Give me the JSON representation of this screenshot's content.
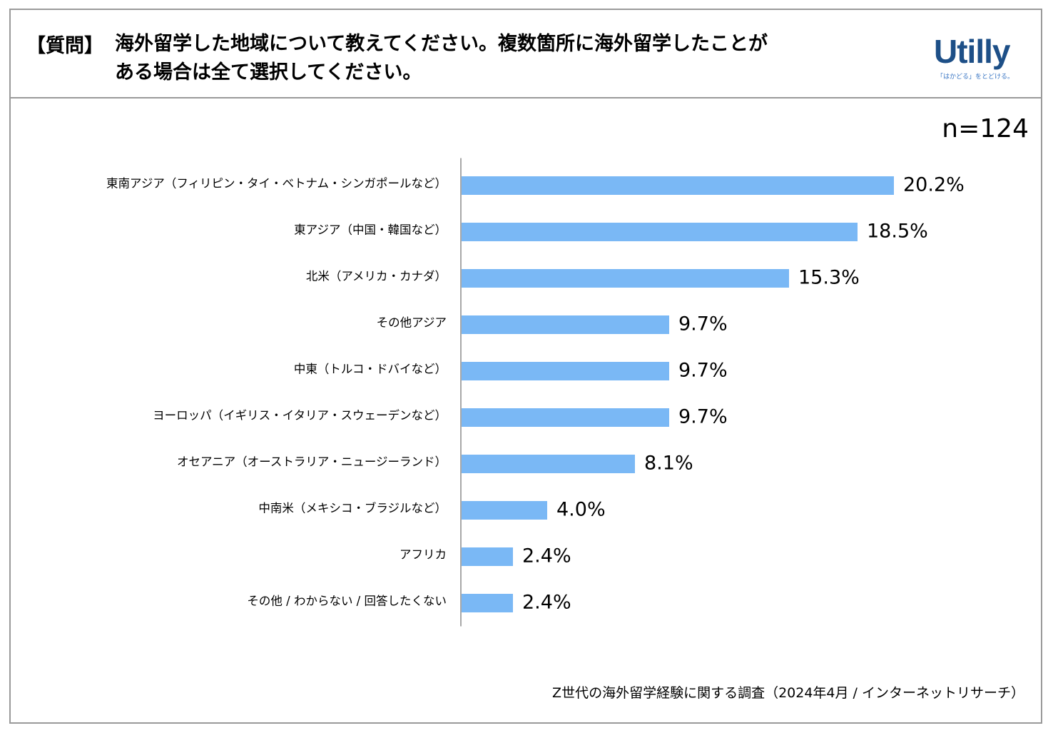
{
  "header": {
    "tag": "【質問】",
    "question_line1": "海外留学した地域について教えてください。複数箇所に海外留学したことが",
    "question_line2": "ある場合は全て選択してください。"
  },
  "logo": {
    "name": "Utilly",
    "tagline": "「はかどる」をとどける。"
  },
  "sample_size": "n=124",
  "source": "Z世代の海外留学経験に関する調査（2024年4月 / インターネットリサーチ）",
  "colors": {
    "bar": "#7ab8f5",
    "axis": "#8c8c8c",
    "border": "#9a9a9a"
  },
  "chart_data": {
    "type": "bar",
    "orientation": "horizontal",
    "categories": [
      "東南アジア（フィリピン・タイ・ベトナム・シンガポールなど）",
      "東アジア（中国・韓国など）",
      "北米（アメリカ・カナダ）",
      "その他アジア",
      "中東（トルコ・ドバイなど）",
      "ヨーロッパ（イギリス・イタリア・スウェーデンなど）",
      "オセアニア（オーストラリア・ニュージーランド）",
      "中南米（メキシコ・ブラジルなど）",
      "アフリカ",
      "その他 / わからない / 回答したくない"
    ],
    "values": [
      20.2,
      18.5,
      15.3,
      9.7,
      9.7,
      9.7,
      8.1,
      4.0,
      2.4,
      2.4
    ],
    "value_labels": [
      "20.2%",
      "18.5%",
      "15.3%",
      "9.7%",
      "9.7%",
      "9.7%",
      "8.1%",
      "4.0%",
      "2.4%",
      "2.4%"
    ],
    "unit": "%",
    "xlim": [
      0,
      30
    ]
  }
}
